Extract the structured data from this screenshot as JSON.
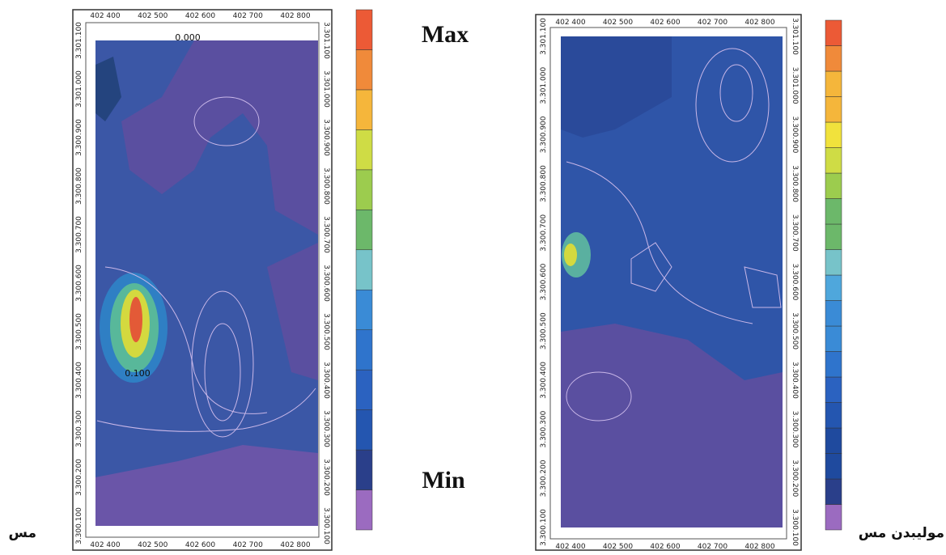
{
  "maps": [
    {
      "x_labels": [
        "402 400",
        "402 500",
        "402 600",
        "402 700",
        "402 800"
      ],
      "y_labels": [
        "3.300.100",
        "3.300.200",
        "3.300.300",
        "3.300.400",
        "3.300.500",
        "3.300.600",
        "3.300.700",
        "3.300.800",
        "3.300.900",
        "3.301.000",
        "3.301.100"
      ],
      "contour_labels": [
        "0.000",
        "0.100"
      ],
      "caption": "مس"
    },
    {
      "x_labels": [
        "402 400",
        "402 500",
        "402 600",
        "402 700",
        "402 800"
      ],
      "y_labels": [
        "3.300.100",
        "3.300.200",
        "3.300.300",
        "3.300.400",
        "3.300.500",
        "3.300.600",
        "3.300.700",
        "3.300.800",
        "3.300.900",
        "3.301.000",
        "3.301.100"
      ],
      "contour_labels": [],
      "caption": "مولیبدن مس"
    }
  ],
  "legend": {
    "max": "Max",
    "min": "Min"
  }
}
